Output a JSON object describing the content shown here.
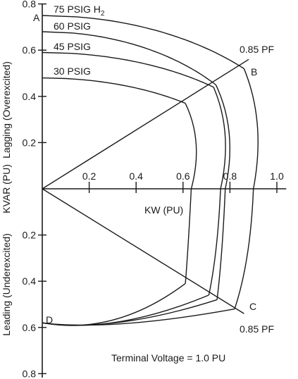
{
  "chart_data": {
    "type": "line",
    "title": "",
    "xlabel": "KW (PU)",
    "ylabel": "KVAR (PU)",
    "ylabel_upper": "Lagging (Overexcited)",
    "ylabel_lower": "Leading (Underexcited)",
    "xlim": [
      0,
      1.1
    ],
    "ylim": [
      -0.8,
      0.8
    ],
    "x_ticks": [
      {
        "value": 0.2,
        "label": "0.2"
      },
      {
        "value": 0.4,
        "label": "0.4"
      },
      {
        "value": 0.6,
        "label": "0.6"
      },
      {
        "value": 0.8,
        "label": "0.8"
      },
      {
        "value": 1.0,
        "label": "1.0"
      }
    ],
    "y_ticks": [
      {
        "value": 0.8,
        "label": "0.8"
      },
      {
        "value": 0.6,
        "label": "0.6"
      },
      {
        "value": 0.4,
        "label": "0.4"
      },
      {
        "value": 0.2,
        "label": "0.2"
      },
      {
        "value": -0.2,
        "label": "0.2"
      },
      {
        "value": -0.4,
        "label": "0.4"
      },
      {
        "value": -0.6,
        "label": "0.6"
      },
      {
        "value": -0.8,
        "label": "0.8"
      }
    ],
    "series": [
      {
        "name": "75 PSIG H",
        "name_sub": "2",
        "q_at_zero": 0.75,
        "arc_end": [
          0.86,
          0.52
        ],
        "p_at_lower_pf": 0.82,
        "q_at_lower_pf": -0.52
      },
      {
        "name": "60 PSIG",
        "q_at_zero": 0.68,
        "arc_end": [
          0.74,
          0.45
        ],
        "p_at_lower_pf": 0.745,
        "q_at_lower_pf": -0.48
      },
      {
        "name": "45 PSIG",
        "q_at_zero": 0.59,
        "arc_end": [
          0.73,
          0.44
        ],
        "p_at_lower_pf": 0.71,
        "q_at_lower_pf": -0.46
      },
      {
        "name": "30 PSIG",
        "q_at_zero": 0.48,
        "arc_end": [
          0.61,
          0.37
        ],
        "p_at_lower_pf": 0.61,
        "q_at_lower_pf": -0.41
      }
    ],
    "pf_lines": [
      {
        "label": "0.85 PF",
        "from": [
          0,
          0
        ],
        "to": [
          0.88,
          0.56
        ]
      },
      {
        "label": "0.85 PF",
        "from": [
          0,
          0
        ],
        "to": [
          0.86,
          -0.54
        ]
      }
    ],
    "points": [
      {
        "label": "A",
        "x": 0,
        "y": 0.75
      },
      {
        "label": "B",
        "x": 0.86,
        "y": 0.52
      },
      {
        "label": "C",
        "x": 0.84,
        "y": -0.52
      },
      {
        "label": "D",
        "x": 0,
        "y": -0.58
      }
    ],
    "annotation": "Terminal Voltage = 1.0 PU"
  }
}
